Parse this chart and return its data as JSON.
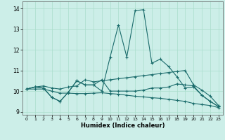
{
  "xlabel": "Humidex (Indice chaleur)",
  "xlim": [
    -0.5,
    23.5
  ],
  "ylim": [
    8.85,
    14.35
  ],
  "yticks": [
    9,
    10,
    11,
    12,
    13,
    14
  ],
  "xticks": [
    0,
    1,
    2,
    3,
    4,
    5,
    6,
    7,
    8,
    9,
    10,
    11,
    12,
    13,
    14,
    15,
    16,
    17,
    18,
    19,
    20,
    21,
    22,
    23
  ],
  "background_color": "#cceee8",
  "grid_color": "#aaddcc",
  "line_color": "#1a6b6b",
  "line_spike": [
    10.1,
    10.2,
    10.15,
    9.7,
    9.5,
    9.95,
    10.5,
    10.3,
    10.3,
    10.0,
    11.65,
    13.2,
    11.65,
    13.9,
    13.95,
    11.35,
    11.55,
    11.2,
    10.7,
    10.15,
    10.2,
    9.8,
    9.5,
    9.25
  ],
  "line_zigzag": [
    10.1,
    10.2,
    10.15,
    9.7,
    9.5,
    9.95,
    10.5,
    10.3,
    10.3,
    10.55,
    10.0,
    10.0,
    10.0,
    10.0,
    10.05,
    10.15,
    10.15,
    10.2,
    10.35,
    10.3,
    10.25,
    9.8,
    9.5,
    9.25
  ],
  "line_rising": [
    10.1,
    10.2,
    10.25,
    10.15,
    10.1,
    10.2,
    10.25,
    10.55,
    10.45,
    10.5,
    10.55,
    10.6,
    10.65,
    10.7,
    10.75,
    10.8,
    10.85,
    10.9,
    10.95,
    11.0,
    10.3,
    10.05,
    9.75,
    9.3
  ],
  "line_falling": [
    10.1,
    10.1,
    10.1,
    10.0,
    9.9,
    9.9,
    9.88,
    9.88,
    9.9,
    9.92,
    9.88,
    9.85,
    9.8,
    9.75,
    9.72,
    9.68,
    9.65,
    9.6,
    9.55,
    9.5,
    9.4,
    9.35,
    9.3,
    9.2
  ]
}
